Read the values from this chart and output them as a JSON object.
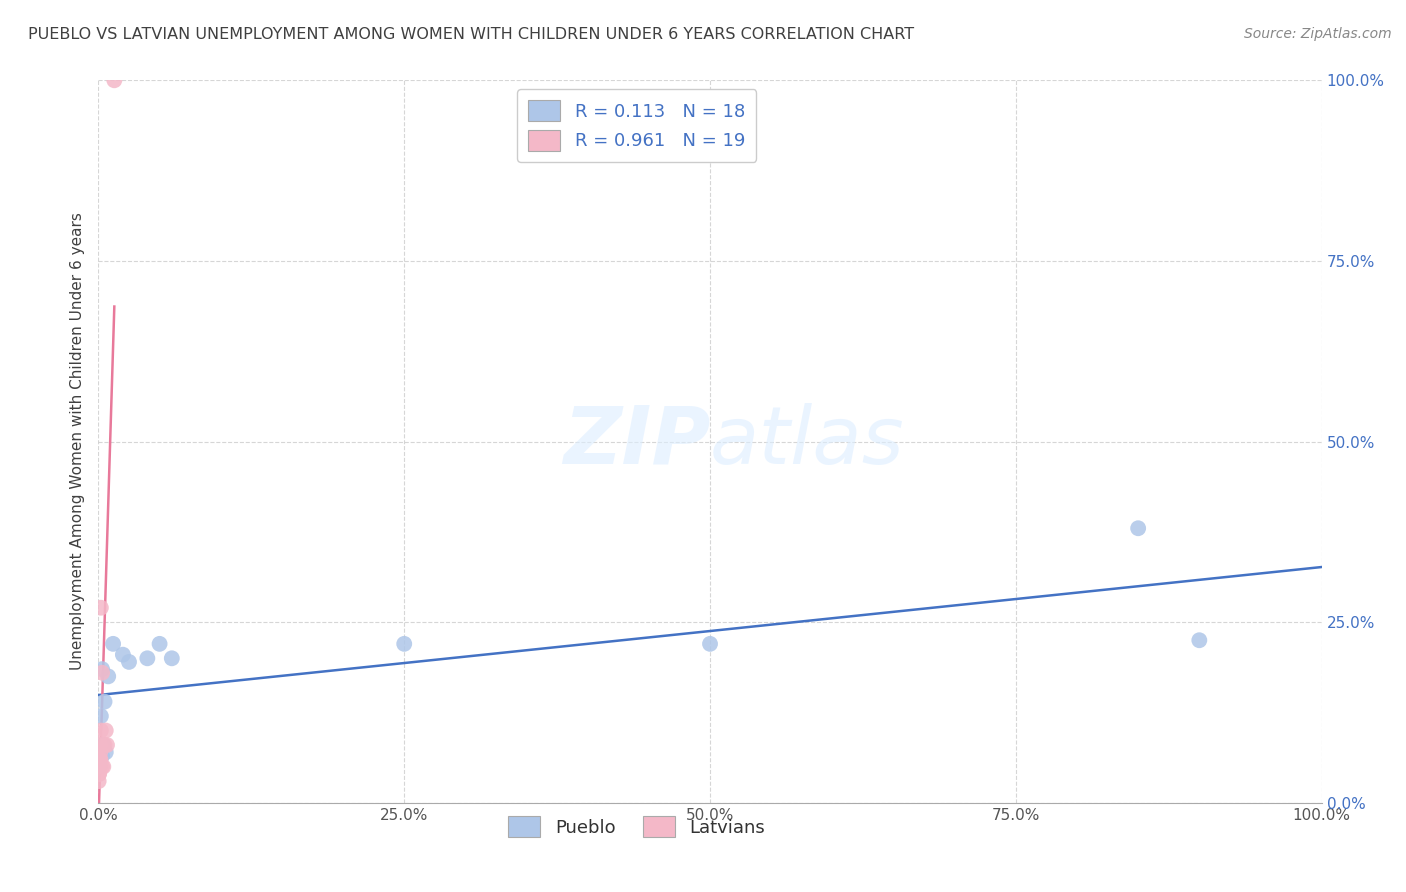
{
  "title": "PUEBLO VS LATVIAN UNEMPLOYMENT AMONG WOMEN WITH CHILDREN UNDER 6 YEARS CORRELATION CHART",
  "source": "Source: ZipAtlas.com",
  "ylabel": "Unemployment Among Women with Children Under 6 years",
  "pueblo_color": "#aec6e8",
  "latvian_color": "#f4b8c8",
  "pueblo_line_color": "#4472c4",
  "latvian_line_color": "#e8799a",
  "bg_color": "#ffffff",
  "grid_color": "#cccccc",
  "title_color": "#404040",
  "R_pueblo": 0.113,
  "N_pueblo": 18,
  "R_latvian": 0.961,
  "N_latvian": 19,
  "xlim": [
    0.0,
    1.0
  ],
  "ylim": [
    0.0,
    1.0
  ],
  "xticks": [
    0.0,
    0.25,
    0.5,
    0.75,
    1.0
  ],
  "yticks": [
    0.0,
    0.25,
    0.5,
    0.75,
    1.0
  ],
  "xticklabels": [
    "0.0%",
    "25.0%",
    "50.0%",
    "75.0%",
    "100.0%"
  ],
  "yticklabels": [
    "0.0%",
    "25.0%",
    "50.0%",
    "75.0%",
    "100.0%"
  ],
  "scatter_size": 130,
  "pueblo_x": [
    0.001,
    0.002,
    0.003,
    0.003,
    0.004,
    0.005,
    0.006,
    0.008,
    0.012,
    0.02,
    0.025,
    0.04,
    0.05,
    0.06,
    0.25,
    0.5,
    0.85,
    0.9
  ],
  "pueblo_y": [
    0.05,
    0.12,
    0.065,
    0.185,
    0.08,
    0.14,
    0.07,
    0.175,
    0.22,
    0.205,
    0.195,
    0.2,
    0.22,
    0.2,
    0.22,
    0.22,
    0.38,
    0.225
  ],
  "latvian_x": [
    0.0002,
    0.0003,
    0.0005,
    0.0006,
    0.0008,
    0.001,
    0.0012,
    0.0013,
    0.0015,
    0.0017,
    0.002,
    0.002,
    0.003,
    0.003,
    0.004,
    0.005,
    0.006,
    0.007,
    0.013
  ],
  "latvian_y": [
    0.03,
    0.04,
    0.05,
    0.04,
    0.06,
    0.05,
    0.08,
    0.06,
    0.07,
    0.06,
    0.1,
    0.27,
    0.18,
    0.05,
    0.05,
    0.08,
    0.1,
    0.08,
    1.0
  ]
}
